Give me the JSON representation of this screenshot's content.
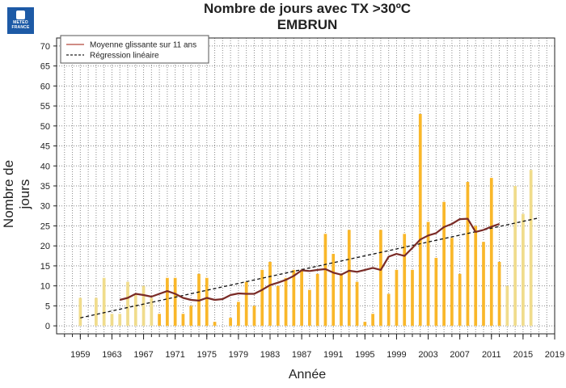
{
  "header": {
    "logo_line1": "METEO",
    "logo_line2": "FRANCE",
    "title": "Nombre de jours avec TX >30ºC",
    "subtitle": "EMBRUN"
  },
  "chart_data": {
    "type": "bar",
    "title": "Nombre de jours avec TX >30ºC",
    "subtitle": "EMBRUN",
    "xlabel": "Année",
    "ylabel": "Nombre de jours",
    "xlim": [
      1956,
      2019
    ],
    "ylim": [
      -2,
      72
    ],
    "yticks": [
      0,
      5,
      10,
      15,
      20,
      25,
      30,
      35,
      40,
      45,
      50,
      55,
      60,
      65,
      70
    ],
    "xticks": [
      1959,
      1963,
      1967,
      1971,
      1975,
      1979,
      1983,
      1987,
      1991,
      1995,
      1999,
      2003,
      2007,
      2011,
      2015,
      2019
    ],
    "grid": true,
    "legend_position": "top-left",
    "legend": [
      {
        "label": "Moyenne glissante sur 11 ans",
        "style": "solid",
        "color": "#b5473c"
      },
      {
        "label": "Régression linéaire",
        "style": "dashed",
        "color": "#222222"
      }
    ],
    "colors": {
      "bar": "#f9b72a",
      "bar_light": "#f0dc8c",
      "moving_average": "#7a2b26",
      "regression": "#111111"
    },
    "years": [
      1959,
      1960,
      1961,
      1962,
      1963,
      1964,
      1965,
      1966,
      1967,
      1968,
      1969,
      1970,
      1971,
      1972,
      1973,
      1974,
      1975,
      1976,
      1977,
      1978,
      1979,
      1980,
      1981,
      1982,
      1983,
      1984,
      1985,
      1986,
      1987,
      1988,
      1989,
      1990,
      1991,
      1992,
      1993,
      1994,
      1995,
      1996,
      1997,
      1998,
      1999,
      2000,
      2001,
      2002,
      2003,
      2004,
      2005,
      2006,
      2007,
      2008,
      2009,
      2010,
      2011,
      2012,
      2013,
      2014,
      2015,
      2016,
      2017
    ],
    "values": [
      7,
      0,
      7,
      12,
      3,
      3,
      11,
      8,
      10,
      7,
      3,
      12,
      12,
      3,
      5,
      13,
      12,
      1,
      0,
      2,
      6,
      11,
      5,
      14,
      16,
      10,
      12,
      14,
      14,
      9,
      13,
      23,
      18,
      13,
      24,
      11,
      1,
      3,
      24,
      8,
      14,
      23,
      14,
      53,
      26,
      17,
      31,
      22,
      13,
      36,
      25,
      21,
      37,
      16,
      10,
      35,
      28,
      39,
      0
    ],
    "light_years": [
      1959,
      1960,
      1961,
      1962,
      1963,
      1964,
      1965,
      1966,
      1967,
      1968,
      2013,
      2014,
      2015,
      2016,
      2017
    ],
    "series": [
      {
        "name": "Moyenne glissante sur 11 ans",
        "x": [
          1964,
          1965,
          1966,
          1967,
          1968,
          1969,
          1970,
          1971,
          1972,
          1973,
          1974,
          1975,
          1976,
          1977,
          1978,
          1979,
          1980,
          1981,
          1982,
          1983,
          1984,
          1985,
          1986,
          1987,
          1988,
          1989,
          1990,
          1991,
          1992,
          1993,
          1994,
          1995,
          1996,
          1997,
          1998,
          1999,
          2000,
          2001,
          2002,
          2003,
          2004,
          2005,
          2006,
          2007,
          2008,
          2009,
          2010,
          2011,
          2012
        ],
        "values": [
          6.5,
          7,
          8,
          7.7,
          7.3,
          8,
          8.7,
          8,
          7,
          6.5,
          6.3,
          7,
          6.5,
          6.7,
          7.7,
          8.1,
          8,
          8,
          9,
          10.2,
          10.8,
          11.5,
          12.5,
          13.9,
          13.7,
          14,
          14.2,
          13.3,
          12.8,
          13.8,
          13.5,
          14,
          14.5,
          14,
          17.3,
          18,
          17.5,
          19.5,
          21.6,
          22.6,
          23.2,
          24.7,
          25.5,
          26.7,
          26.8,
          23.5,
          24,
          24.8,
          25.5
        ]
      },
      {
        "name": "Régression linéaire",
        "x": [
          1959,
          2017
        ],
        "values": [
          2,
          27
        ]
      }
    ]
  }
}
